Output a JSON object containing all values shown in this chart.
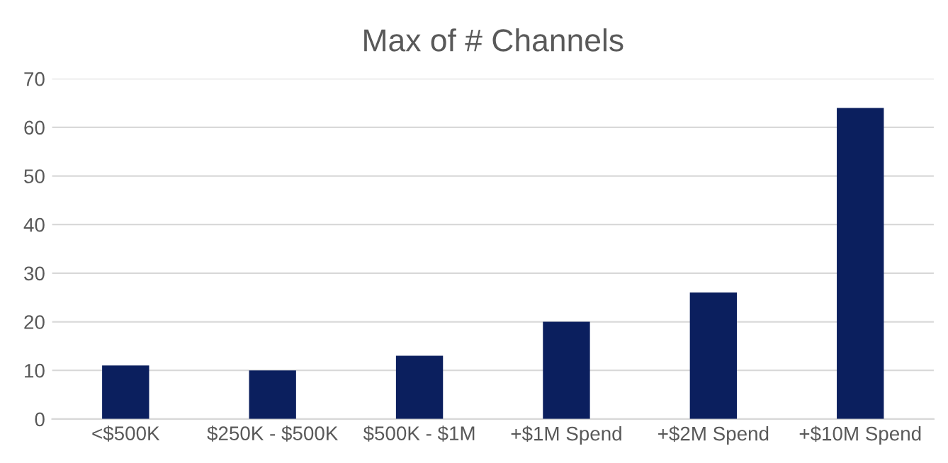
{
  "chart_data": {
    "type": "bar",
    "title": "Max of # Channels",
    "categories": [
      "<$500K",
      "$250K - $500K",
      "$500K - $1M",
      "+$1M Spend",
      "+$2M Spend",
      "+$10M Spend"
    ],
    "values": [
      11,
      10,
      13,
      20,
      26,
      64
    ],
    "color": "#0b1f5e",
    "ylim": [
      0,
      70
    ],
    "yticks": [
      0,
      10,
      20,
      30,
      40,
      50,
      60,
      70
    ],
    "grid": "y",
    "legend": false
  }
}
